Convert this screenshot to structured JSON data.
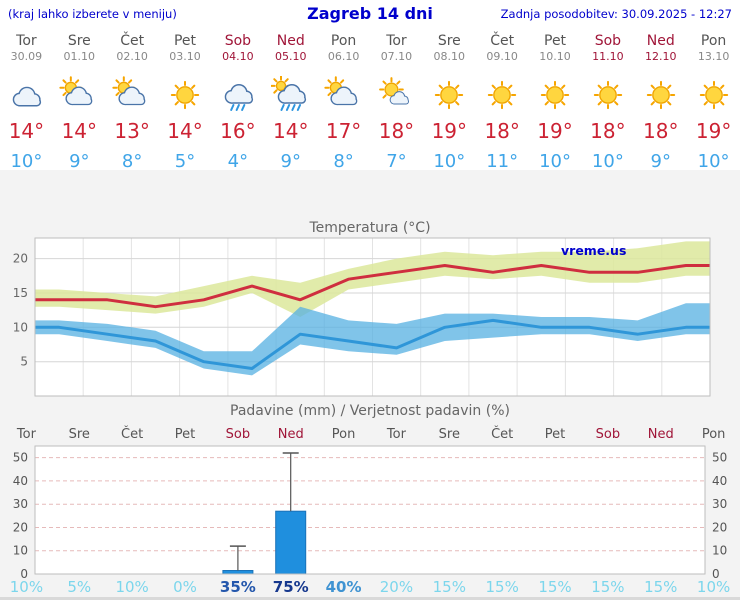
{
  "header": {
    "left_note": "(kraj lahko izberete v meniju)",
    "title": "Zagreb 14 dni",
    "updated": "Zadnja posodobitev: 30.09.2025 - 12:27"
  },
  "forecast": {
    "days": [
      {
        "day": "Tor",
        "date": "30.09",
        "weekend": false,
        "icon": "cloudy",
        "tmax": 14,
        "tmin": 10
      },
      {
        "day": "Sre",
        "date": "01.10",
        "weekend": false,
        "icon": "partly-cloudy",
        "tmax": 14,
        "tmin": 9
      },
      {
        "day": "Čet",
        "date": "02.10",
        "weekend": false,
        "icon": "partly-cloudy",
        "tmax": 13,
        "tmin": 8
      },
      {
        "day": "Pet",
        "date": "03.10",
        "weekend": false,
        "icon": "sunny",
        "tmax": 14,
        "tmin": 5
      },
      {
        "day": "Sob",
        "date": "04.10",
        "weekend": true,
        "icon": "rain",
        "tmax": 16,
        "tmin": 4
      },
      {
        "day": "Ned",
        "date": "05.10",
        "weekend": true,
        "icon": "rain-showers",
        "tmax": 14,
        "tmin": 9
      },
      {
        "day": "Pon",
        "date": "06.10",
        "weekend": false,
        "icon": "partly-cloudy",
        "tmax": 17,
        "tmin": 8
      },
      {
        "day": "Tor",
        "date": "07.10",
        "weekend": false,
        "icon": "mostly-sunny",
        "tmax": 18,
        "tmin": 7
      },
      {
        "day": "Sre",
        "date": "08.10",
        "weekend": false,
        "icon": "sunny",
        "tmax": 19,
        "tmin": 10
      },
      {
        "day": "Čet",
        "date": "09.10",
        "weekend": false,
        "icon": "sunny",
        "tmax": 18,
        "tmin": 11
      },
      {
        "day": "Pet",
        "date": "10.10",
        "weekend": false,
        "icon": "sunny",
        "tmax": 19,
        "tmin": 10
      },
      {
        "day": "Sob",
        "date": "11.10",
        "weekend": true,
        "icon": "sunny",
        "tmax": 18,
        "tmin": 10
      },
      {
        "day": "Ned",
        "date": "12.10",
        "weekend": true,
        "icon": "sunny",
        "tmax": 18,
        "tmin": 9
      },
      {
        "day": "Pon",
        "date": "13.10",
        "weekend": false,
        "icon": "sunny",
        "tmax": 19,
        "tmin": 10
      }
    ]
  },
  "temperature_chart": {
    "title": "Temperatura (°C)",
    "watermark": "vreme.us"
  },
  "precipitation_chart": {
    "title": "Padavine (mm) / Verjetnost padavin (%)"
  },
  "chart_data": [
    {
      "type": "line",
      "title": "Temperatura (°C)",
      "x_labels": [
        "Tor 30.09",
        "Sre 01.10",
        "Čet 02.10",
        "Pet 03.10",
        "Sob 04.10",
        "Ned 05.10",
        "Pon 06.10",
        "Tor 07.10",
        "Sre 08.10",
        "Čet 09.10",
        "Pet 10.10",
        "Sob 11.10",
        "Ned 12.10",
        "Pon 13.10"
      ],
      "ylim": [
        0,
        23
      ],
      "yticks": [
        5,
        10,
        15,
        20
      ],
      "grid": true,
      "series": [
        {
          "name": "tmax",
          "color": "#cf2e3f",
          "values": [
            14,
            14,
            13,
            14,
            16,
            14,
            17,
            18,
            19,
            18,
            19,
            18,
            18,
            19
          ]
        },
        {
          "name": "tmin",
          "color": "#2f96d8",
          "values": [
            10,
            9,
            8,
            5,
            4,
            9,
            8,
            7,
            10,
            11,
            10,
            10,
            9,
            10
          ]
        },
        {
          "name": "tmax_band_high",
          "color": "#dce79b",
          "values": [
            15.5,
            15,
            14.5,
            16,
            17.5,
            16.5,
            18.5,
            20,
            21,
            20.5,
            21,
            21,
            21.5,
            22.5
          ]
        },
        {
          "name": "tmax_band_low",
          "color": "#dce79b",
          "values": [
            13,
            12.5,
            12,
            13,
            15,
            11.5,
            15.5,
            16.5,
            17.5,
            17,
            17.5,
            16.5,
            16.5,
            17.5
          ]
        },
        {
          "name": "tmin_band_high",
          "color": "#56b0e2",
          "values": [
            11,
            10.5,
            9.5,
            6.5,
            6.5,
            13,
            11,
            10.5,
            12,
            12,
            11.5,
            11.5,
            11,
            13.5
          ]
        },
        {
          "name": "tmin_band_low",
          "color": "#56b0e2",
          "values": [
            9,
            8,
            7,
            4,
            3,
            7.5,
            6.5,
            6,
            8,
            8.5,
            9,
            9,
            8,
            9
          ]
        }
      ]
    },
    {
      "type": "bar",
      "title": "Padavine (mm) / Verjetnost padavin (%)",
      "categories": [
        "Tor",
        "Sre",
        "Čet",
        "Pet",
        "Sob",
        "Ned",
        "Pon",
        "Tor",
        "Sre",
        "Čet",
        "Pet",
        "Sob",
        "Ned",
        "Pon"
      ],
      "weekend": [
        false,
        false,
        false,
        false,
        true,
        true,
        false,
        false,
        false,
        false,
        false,
        true,
        true,
        false
      ],
      "values": [
        0,
        0,
        0,
        0,
        1.5,
        27,
        0,
        0,
        0,
        0,
        0,
        0,
        0,
        0
      ],
      "whiskers": [
        0,
        0,
        0,
        0,
        12,
        52,
        0,
        0,
        0,
        0,
        0,
        0,
        0,
        0
      ],
      "probabilities": [
        10,
        5,
        10,
        0,
        35,
        75,
        40,
        20,
        15,
        15,
        15,
        15,
        15,
        10
      ],
      "prob_colors": [
        "#7cd6ec",
        "#7cd6ec",
        "#7cd6ec",
        "#7cd6ec",
        "#2457ac",
        "#16388e",
        "#3f93d2",
        "#7cd6ec",
        "#7cd6ec",
        "#7cd6ec",
        "#7cd6ec",
        "#7cd6ec",
        "#7cd6ec",
        "#7cd6ec"
      ],
      "bar_color": "#1f8fde",
      "ylim": [
        0,
        55
      ],
      "yticks": [
        0,
        10,
        20,
        30,
        40,
        50
      ]
    }
  ],
  "colors": {
    "header_blue": "#0000cc",
    "tmax_red": "#cc2233",
    "tmin_blue": "#3fa5e8",
    "weekend_red": "#a01538",
    "background_gray": "#f3f3f3"
  }
}
